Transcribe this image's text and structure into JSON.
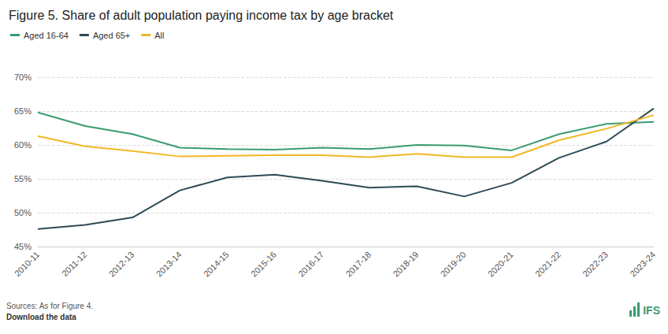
{
  "chart_data": {
    "type": "line",
    "title": "Figure 5. Share of adult population paying income tax by age bracket",
    "categories": [
      "2010-11",
      "2011-12",
      "2012-13",
      "2013-14",
      "2014-15",
      "2015-16",
      "2016-17",
      "2017-18",
      "2018-19",
      "2019-20",
      "2020-21",
      "2021-22",
      "2022-23",
      "2023-24"
    ],
    "series": [
      {
        "name": "Aged 16-64",
        "color": "#3a9b70",
        "values": [
          64.8,
          62.8,
          61.6,
          59.6,
          59.4,
          59.3,
          59.6,
          59.4,
          60.0,
          59.9,
          59.2,
          61.6,
          63.1,
          63.4
        ]
      },
      {
        "name": "Aged 65+",
        "color": "#2e4a56",
        "values": [
          47.6,
          48.2,
          49.3,
          53.3,
          55.2,
          55.6,
          54.7,
          53.7,
          53.9,
          52.4,
          54.4,
          58.1,
          60.5,
          65.4
        ]
      },
      {
        "name": "All",
        "color": "#f2b824",
        "values": [
          61.3,
          59.8,
          59.1,
          58.3,
          58.4,
          58.5,
          58.5,
          58.2,
          58.7,
          58.2,
          58.2,
          60.7,
          62.4,
          64.4
        ]
      }
    ],
    "ylim": [
      45,
      70
    ],
    "yticks": [
      {
        "value": 45,
        "label": "45%"
      },
      {
        "value": 50,
        "label": "50%"
      },
      {
        "value": 55,
        "label": "55%"
      },
      {
        "value": 60,
        "label": "60%"
      },
      {
        "value": 65,
        "label": "65%"
      },
      {
        "value": 70,
        "label": "70%"
      }
    ],
    "grid": true,
    "legend": "top-left",
    "footer": [
      "Sources: As for Figure 4.",
      "Download the data"
    ],
    "logo": "IFS"
  }
}
